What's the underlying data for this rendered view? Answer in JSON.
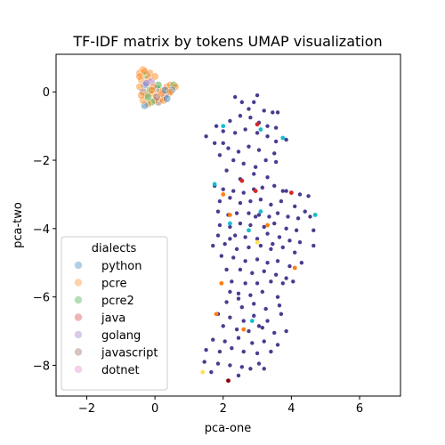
{
  "chart_data": {
    "type": "scatter",
    "title": "TF-IDF matrix by tokens UMAP visualization",
    "xlabel": "pca-one",
    "ylabel": "pca-two",
    "xlim": [
      -2.9,
      7.2
    ],
    "ylim": [
      -8.9,
      1.1
    ],
    "xticks": [
      -2,
      0,
      2,
      4,
      6
    ],
    "yticks": [
      0,
      -2,
      -4,
      -6,
      -8
    ],
    "legend": {
      "title": "dialects",
      "placement": "lower-left",
      "entries": [
        {
          "name": "python",
          "color": "#1f77b4"
        },
        {
          "name": "pcre",
          "color": "#ff7f0e"
        },
        {
          "name": "pcre2",
          "color": "#2ca02c"
        },
        {
          "name": "java",
          "color": "#d62728"
        },
        {
          "name": "golang",
          "color": "#9467bd"
        },
        {
          "name": "javascript",
          "color": "#8c564b"
        },
        {
          "name": "dotnet",
          "color": "#e377c2"
        }
      ]
    },
    "point_color": "#4b3b8f",
    "cluster_a": {
      "points": [
        [
          -0.45,
          0.55
        ],
        [
          -0.35,
          0.65
        ],
        [
          -0.25,
          0.5
        ],
        [
          -0.4,
          0.35
        ],
        [
          -0.3,
          0.2
        ],
        [
          -0.2,
          0.4
        ],
        [
          -0.1,
          0.3
        ],
        [
          -0.45,
          0.15
        ],
        [
          -0.35,
          0.0
        ],
        [
          -0.25,
          -0.1
        ],
        [
          -0.15,
          0.05
        ],
        [
          -0.05,
          -0.05
        ],
        [
          0.05,
          0.1
        ],
        [
          0.15,
          0.0
        ],
        [
          0.25,
          0.05
        ],
        [
          0.35,
          0.15
        ],
        [
          0.45,
          0.2
        ],
        [
          0.55,
          0.2
        ],
        [
          0.6,
          0.15
        ],
        [
          0.5,
          0.05
        ],
        [
          0.4,
          -0.05
        ],
        [
          0.3,
          -0.1
        ],
        [
          0.2,
          -0.2
        ],
        [
          0.1,
          -0.3
        ],
        [
          0.0,
          -0.25
        ],
        [
          -0.1,
          -0.3
        ],
        [
          -0.2,
          -0.35
        ],
        [
          -0.3,
          -0.4
        ],
        [
          -0.35,
          -0.25
        ],
        [
          -0.4,
          -0.1
        ],
        [
          -0.15,
          0.55
        ],
        [
          0.0,
          0.45
        ],
        [
          0.1,
          0.2
        ],
        [
          0.2,
          -0.05
        ],
        [
          0.3,
          0.05
        ],
        [
          -0.05,
          0.15
        ],
        [
          -0.25,
          0.25
        ],
        [
          -0.45,
          0.45
        ],
        [
          0.05,
          -0.15
        ],
        [
          0.25,
          -0.25
        ],
        [
          -0.2,
          -0.15
        ],
        [
          0.45,
          0.0
        ],
        [
          0.35,
          -0.2
        ],
        [
          -0.3,
          0.6
        ],
        [
          -0.1,
          0.05
        ]
      ],
      "colors": [
        "#ff7f0e",
        "#ff7f0e",
        "#2ca02c",
        "#ff7f0e",
        "#1f77b4",
        "#ff7f0e",
        "#9467bd",
        "#ff7f0e",
        "#8c564b",
        "#ff7f0e",
        "#2ca02c",
        "#ff7f0e",
        "#1f77b4",
        "#ff7f0e",
        "#ff7f0e"
      ]
    },
    "cluster_b": {
      "points": [
        [
          2.35,
          -0.15
        ],
        [
          2.55,
          -0.3
        ],
        [
          3.0,
          -0.1
        ],
        [
          2.9,
          -0.3
        ],
        [
          2.75,
          -0.5
        ],
        [
          3.2,
          -0.55
        ],
        [
          3.45,
          -0.6
        ],
        [
          3.6,
          -0.6
        ],
        [
          2.5,
          -0.7
        ],
        [
          2.2,
          -0.85
        ],
        [
          2.8,
          -0.75
        ],
        [
          3.05,
          -0.9
        ],
        [
          3.3,
          -1.0
        ],
        [
          3.55,
          -1.05
        ],
        [
          1.8,
          -1.0
        ],
        [
          2.0,
          -1.15
        ],
        [
          2.35,
          -1.2
        ],
        [
          2.65,
          -1.1
        ],
        [
          3.0,
          -1.2
        ],
        [
          3.3,
          -1.3
        ],
        [
          3.85,
          -1.4
        ],
        [
          1.5,
          -1.3
        ],
        [
          1.75,
          -1.5
        ],
        [
          2.0,
          -1.5
        ],
        [
          2.15,
          -1.65
        ],
        [
          2.45,
          -1.75
        ],
        [
          2.75,
          -1.6
        ],
        [
          3.05,
          -1.7
        ],
        [
          3.5,
          -1.8
        ],
        [
          1.9,
          -1.85
        ],
        [
          2.3,
          -2.0
        ],
        [
          2.6,
          -2.1
        ],
        [
          2.95,
          -2.2
        ],
        [
          3.25,
          -2.0
        ],
        [
          3.55,
          -2.05
        ],
        [
          2.1,
          -2.3
        ],
        [
          2.5,
          -2.55
        ],
        [
          2.9,
          -2.4
        ],
        [
          3.3,
          -2.5
        ],
        [
          1.75,
          -2.75
        ],
        [
          2.0,
          -2.85
        ],
        [
          2.3,
          -2.9
        ],
        [
          2.6,
          -2.95
        ],
        [
          2.9,
          -2.85
        ],
        [
          3.15,
          -2.8
        ],
        [
          3.5,
          -2.75
        ],
        [
          3.75,
          -2.9
        ],
        [
          4.0,
          -2.95
        ],
        [
          4.25,
          -3.0
        ],
        [
          4.5,
          -3.05
        ],
        [
          1.9,
          -3.2
        ],
        [
          2.2,
          -3.1
        ],
        [
          2.5,
          -3.25
        ],
        [
          2.8,
          -3.2
        ],
        [
          3.1,
          -3.15
        ],
        [
          3.4,
          -3.3
        ],
        [
          3.7,
          -3.2
        ],
        [
          4.1,
          -3.35
        ],
        [
          4.4,
          -3.5
        ],
        [
          1.85,
          -3.5
        ],
        [
          2.15,
          -3.6
        ],
        [
          2.4,
          -3.55
        ],
        [
          2.75,
          -3.55
        ],
        [
          3.05,
          -3.6
        ],
        [
          3.35,
          -3.65
        ],
        [
          3.6,
          -3.55
        ],
        [
          3.9,
          -3.65
        ],
        [
          4.2,
          -3.7
        ],
        [
          4.55,
          -3.65
        ],
        [
          1.9,
          -3.9
        ],
        [
          2.2,
          -3.95
        ],
        [
          2.5,
          -3.85
        ],
        [
          2.8,
          -3.9
        ],
        [
          3.2,
          -3.95
        ],
        [
          3.5,
          -3.85
        ],
        [
          3.85,
          -4.0
        ],
        [
          4.15,
          -4.05
        ],
        [
          4.65,
          -4.05
        ],
        [
          1.85,
          -4.2
        ],
        [
          2.35,
          -4.2
        ],
        [
          2.65,
          -4.25
        ],
        [
          3.0,
          -4.3
        ],
        [
          3.3,
          -4.15
        ],
        [
          3.65,
          -4.25
        ],
        [
          3.95,
          -4.35
        ],
        [
          4.25,
          -4.4
        ],
        [
          1.7,
          -4.5
        ],
        [
          2.05,
          -4.45
        ],
        [
          2.4,
          -4.6
        ],
        [
          2.75,
          -4.55
        ],
        [
          3.1,
          -4.5
        ],
        [
          3.4,
          -4.6
        ],
        [
          3.75,
          -4.55
        ],
        [
          4.1,
          -4.7
        ],
        [
          4.65,
          -4.5
        ],
        [
          1.95,
          -4.8
        ],
        [
          2.3,
          -4.85
        ],
        [
          2.65,
          -4.95
        ],
        [
          3.0,
          -4.9
        ],
        [
          3.3,
          -5.0
        ],
        [
          3.6,
          -4.95
        ],
        [
          3.95,
          -5.1
        ],
        [
          4.3,
          -5.0
        ],
        [
          2.1,
          -5.2
        ],
        [
          2.5,
          -5.2
        ],
        [
          2.85,
          -5.3
        ],
        [
          3.2,
          -5.25
        ],
        [
          3.55,
          -5.35
        ],
        [
          3.85,
          -5.45
        ],
        [
          2.25,
          -5.55
        ],
        [
          2.65,
          -5.6
        ],
        [
          3.0,
          -5.6
        ],
        [
          3.4,
          -5.55
        ],
        [
          3.75,
          -5.6
        ],
        [
          4.05,
          -5.55
        ],
        [
          2.45,
          -5.9
        ],
        [
          2.8,
          -5.95
        ],
        [
          3.15,
          -5.85
        ],
        [
          3.6,
          -6.0
        ],
        [
          2.1,
          -6.15
        ],
        [
          2.55,
          -6.3
        ],
        [
          2.9,
          -6.2
        ],
        [
          3.25,
          -6.35
        ],
        [
          3.65,
          -6.25
        ],
        [
          1.85,
          -6.5
        ],
        [
          2.2,
          -6.6
        ],
        [
          2.6,
          -6.7
        ],
        [
          2.9,
          -6.55
        ],
        [
          3.3,
          -6.7
        ],
        [
          3.7,
          -6.5
        ],
        [
          2.0,
          -6.85
        ],
        [
          2.4,
          -6.95
        ],
        [
          2.75,
          -7.0
        ],
        [
          3.15,
          -6.9
        ],
        [
          3.5,
          -7.05
        ],
        [
          3.85,
          -7.0
        ],
        [
          1.7,
          -7.25
        ],
        [
          2.05,
          -7.3
        ],
        [
          2.45,
          -7.2
        ],
        [
          2.85,
          -7.35
        ],
        [
          3.2,
          -7.3
        ],
        [
          3.6,
          -7.4
        ],
        [
          1.5,
          -7.55
        ],
        [
          1.9,
          -7.6
        ],
        [
          2.25,
          -7.5
        ],
        [
          2.6,
          -7.6
        ],
        [
          3.0,
          -7.65
        ],
        [
          3.4,
          -7.6
        ],
        [
          1.45,
          -7.9
        ],
        [
          1.85,
          -7.95
        ],
        [
          2.2,
          -8.0
        ],
        [
          2.55,
          -8.05
        ],
        [
          3.05,
          -7.95
        ],
        [
          3.2,
          -8.1
        ],
        [
          1.65,
          -8.2
        ],
        [
          2.15,
          -8.45
        ],
        [
          2.45,
          -8.3
        ],
        [
          2.8,
          -8.1
        ],
        [
          3.55,
          -1.45
        ],
        [
          2.55,
          -2.6
        ],
        [
          3.85,
          -2.9
        ],
        [
          4.7,
          -3.6
        ],
        [
          2.95,
          -3.65
        ],
        [
          2.2,
          -4.3
        ],
        [
          3.45,
          -4.45
        ],
        [
          2.45,
          -6.05
        ],
        [
          3.05,
          -6.85
        ],
        [
          2.2,
          -5.85
        ]
      ],
      "highlight_points": [
        {
          "x": 2.0,
          "y": -1.0,
          "color": "#17becf"
        },
        {
          "x": 3.1,
          "y": -1.1,
          "color": "#17becf"
        },
        {
          "x": 3.0,
          "y": -0.95,
          "color": "#d62728"
        },
        {
          "x": 3.75,
          "y": -1.35,
          "color": "#17becf"
        },
        {
          "x": 2.55,
          "y": -2.6,
          "color": "#d62728"
        },
        {
          "x": 1.75,
          "y": -2.7,
          "color": "#17becf"
        },
        {
          "x": 2.95,
          "y": -2.9,
          "color": "#d62728"
        },
        {
          "x": 4.0,
          "y": -2.95,
          "color": "#d62728"
        },
        {
          "x": 2.0,
          "y": -3.0,
          "color": "#ff7f0e"
        },
        {
          "x": 3.1,
          "y": -3.5,
          "color": "#17becf"
        },
        {
          "x": 2.2,
          "y": -3.6,
          "color": "#ff7f0e"
        },
        {
          "x": 4.7,
          "y": -3.6,
          "color": "#17becf"
        },
        {
          "x": 2.2,
          "y": -3.85,
          "color": "#17becf"
        },
        {
          "x": 3.3,
          "y": -3.9,
          "color": "#ff7f0e"
        },
        {
          "x": 2.75,
          "y": -4.05,
          "color": "#17becf"
        },
        {
          "x": 3.0,
          "y": -4.4,
          "color": "#ffdd57"
        },
        {
          "x": 4.1,
          "y": -5.15,
          "color": "#ff7f0e"
        },
        {
          "x": 1.95,
          "y": -5.6,
          "color": "#ff7f0e"
        },
        {
          "x": 1.8,
          "y": -6.5,
          "color": "#ff7f0e"
        },
        {
          "x": 2.85,
          "y": -6.7,
          "color": "#17becf"
        },
        {
          "x": 2.6,
          "y": -6.95,
          "color": "#ff7f0e"
        },
        {
          "x": 2.15,
          "y": -8.45,
          "color": "#8b0000"
        },
        {
          "x": 1.4,
          "y": -8.2,
          "color": "#ffdd57"
        }
      ]
    }
  }
}
